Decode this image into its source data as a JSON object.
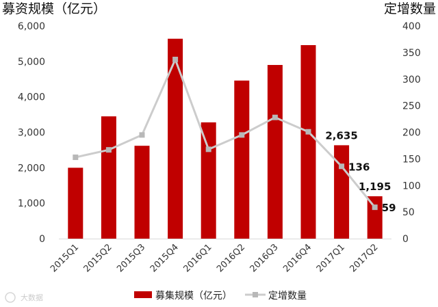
{
  "chart_data": {
    "type": "bar+line",
    "categories": [
      "2015Q1",
      "2015Q2",
      "2015Q3",
      "2015Q4",
      "2016Q1",
      "2016Q2",
      "2016Q3",
      "2016Q4",
      "2017Q1",
      "2017Q2"
    ],
    "series": [
      {
        "name": "募集规模（亿元）",
        "type": "bar",
        "axis": "left",
        "color": "#c00000",
        "values": [
          2000,
          3450,
          2620,
          5640,
          3280,
          4460,
          4900,
          5460,
          2635,
          1195
        ]
      },
      {
        "name": "定增数量",
        "type": "line",
        "axis": "right",
        "color": "#cccccc",
        "values": [
          153,
          167,
          195,
          337,
          168,
          195,
          228,
          201,
          136,
          59
        ]
      }
    ],
    "ylabel_left": "募资规模（亿元）",
    "ylabel_right": "定增数量",
    "ylim_left": [
      0,
      6000
    ],
    "ylim_right": [
      0,
      400
    ],
    "yticks_left": [
      "0",
      "1,000",
      "2,000",
      "3,000",
      "4,000",
      "5,000",
      "6,000"
    ],
    "yticks_right": [
      "0",
      "50",
      "100",
      "150",
      "200",
      "250",
      "300",
      "350",
      "400"
    ],
    "data_labels": [
      {
        "series": 0,
        "index": 8,
        "text": "2,635"
      },
      {
        "series": 0,
        "index": 9,
        "text": "1,195"
      },
      {
        "series": 1,
        "index": 8,
        "text": "136"
      },
      {
        "series": 1,
        "index": 9,
        "text": "59"
      }
    ],
    "legend_position": "bottom",
    "grid": false
  },
  "watermark": "大数据"
}
